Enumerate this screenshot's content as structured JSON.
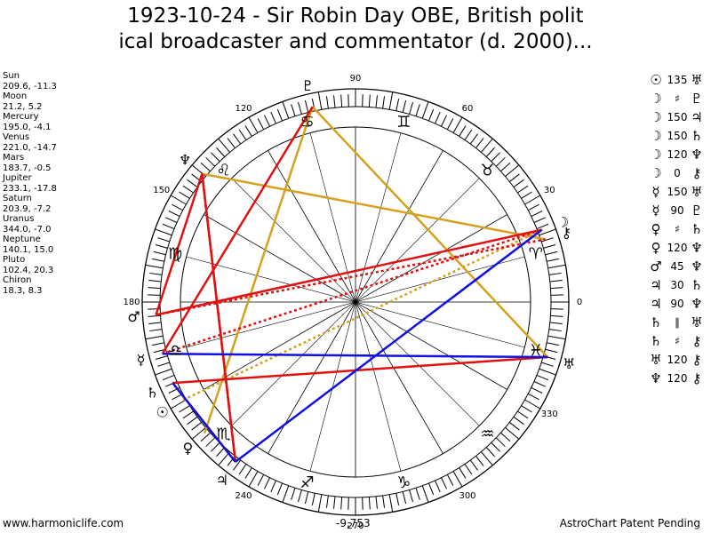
{
  "title_line1": "1923-10-24 - Sir Robin Day OBE, British polit",
  "title_line2": "ical broadcaster and commentator (d. 2000)...",
  "planets": [
    {
      "name": "Sun",
      "coords": "209.6, -11.3"
    },
    {
      "name": "Moon",
      "coords": "21.2, 5.2"
    },
    {
      "name": "Mercury",
      "coords": "195.0, -4.1"
    },
    {
      "name": "Venus",
      "coords": "221.0, -14.7"
    },
    {
      "name": "Mars",
      "coords": "183.7, -0.5"
    },
    {
      "name": "Jupiter",
      "coords": "233.1, -17.8"
    },
    {
      "name": "Saturn",
      "coords": "203.9, -7.2"
    },
    {
      "name": "Uranus",
      "coords": "344.0, -7.0"
    },
    {
      "name": "Neptune",
      "coords": "140.1, 15.0"
    },
    {
      "name": "Pluto",
      "coords": "102.4, 20.3"
    },
    {
      "name": "Chiron",
      "coords": "18.3, 8.3"
    }
  ],
  "aspects": [
    {
      "p1": "☉",
      "aspect": "135",
      "p2": "♅"
    },
    {
      "p1": "☽",
      "aspect": "♯",
      "p2": "♇"
    },
    {
      "p1": "☽",
      "aspect": "150",
      "p2": "♃"
    },
    {
      "p1": "☽",
      "aspect": "150",
      "p2": "♄"
    },
    {
      "p1": "☽",
      "aspect": "120",
      "p2": "♆"
    },
    {
      "p1": "☽",
      "aspect": "0",
      "p2": "⚷"
    },
    {
      "p1": "☿",
      "aspect": "150",
      "p2": "♅"
    },
    {
      "p1": "☿",
      "aspect": "90",
      "p2": "♇"
    },
    {
      "p1": "♀",
      "aspect": "♯",
      "p2": "♄"
    },
    {
      "p1": "♀",
      "aspect": "120",
      "p2": "♆"
    },
    {
      "p1": "♂",
      "aspect": "45",
      "p2": "♆"
    },
    {
      "p1": "♃",
      "aspect": "30",
      "p2": "♄"
    },
    {
      "p1": "♃",
      "aspect": "90",
      "p2": "♆"
    },
    {
      "p1": "♄",
      "aspect": "∥",
      "p2": "♅"
    },
    {
      "p1": "♄",
      "aspect": "♯",
      "p2": "⚷"
    },
    {
      "p1": "♅",
      "aspect": "120",
      "p2": "⚷"
    },
    {
      "p1": "♆",
      "aspect": "120",
      "p2": "⚷"
    }
  ],
  "footer_left": "www.harmoniclife.com",
  "footer_center": "-9,753",
  "footer_right": "AstroChart Patent Pending",
  "wheel": {
    "degree_labels": [
      "0",
      "30",
      "60",
      "90",
      "120",
      "150",
      "180",
      "240",
      "270",
      "300",
      "330"
    ],
    "sign_glyphs": [
      "♈",
      "♉",
      "♊",
      "♋",
      "♌",
      "♍",
      "♎",
      "♏",
      "♐",
      "♑",
      "♒",
      "♓"
    ],
    "planet_glyphs": [
      {
        "glyph": "☉",
        "lon": 209.6
      },
      {
        "glyph": "☽",
        "lon": 21.2
      },
      {
        "glyph": "☿",
        "lon": 195.0
      },
      {
        "glyph": "♀",
        "lon": 221.0
      },
      {
        "glyph": "♂",
        "lon": 183.7
      },
      {
        "glyph": "♃",
        "lon": 233.1
      },
      {
        "glyph": "♄",
        "lon": 203.9
      },
      {
        "glyph": "♅",
        "lon": 344.0
      },
      {
        "glyph": "♆",
        "lon": 140.1
      },
      {
        "glyph": "♇",
        "lon": 102.4
      },
      {
        "glyph": "⚷",
        "lon": 18.3
      }
    ],
    "aspect_lines": [
      {
        "from": "♆",
        "to": "⚷",
        "color": "#d4a020",
        "style": "solid"
      },
      {
        "from": "♇",
        "to": "♅",
        "color": "#d4a020",
        "style": "solid"
      },
      {
        "from": "♇",
        "to": "♀",
        "color": "#d4a020",
        "style": "solid"
      },
      {
        "from": "☽",
        "to": "☉",
        "color": "#d4a020",
        "style": "dotted"
      },
      {
        "from": "♂",
        "to": "♆",
        "color": "#e01010",
        "style": "solid"
      },
      {
        "from": "♆",
        "to": "♃",
        "color": "#e01010",
        "style": "solid"
      },
      {
        "from": "♃",
        "to": "♆",
        "color": "#e01010",
        "style": "solid"
      },
      {
        "from": "♇",
        "to": "☿",
        "color": "#e01010",
        "style": "solid"
      },
      {
        "from": "♂",
        "to": "☽",
        "color": "#e01010",
        "style": "solid"
      },
      {
        "from": "♄",
        "to": "♅",
        "color": "#e01010",
        "style": "solid"
      },
      {
        "from": "♂",
        "to": "⚷",
        "color": "#e01010",
        "style": "dotted"
      },
      {
        "from": "☿",
        "to": "☽",
        "color": "#e01010",
        "style": "dotted"
      },
      {
        "from": "♄",
        "to": "♃",
        "color": "#e01010",
        "style": "solid"
      },
      {
        "from": "♃",
        "to": "☽",
        "color": "#1010e0",
        "style": "solid"
      },
      {
        "from": "☿",
        "to": "♅",
        "color": "#1010e0",
        "style": "solid"
      },
      {
        "from": "♄",
        "to": "♃",
        "color": "#1010e0",
        "style": "solid"
      }
    ]
  }
}
